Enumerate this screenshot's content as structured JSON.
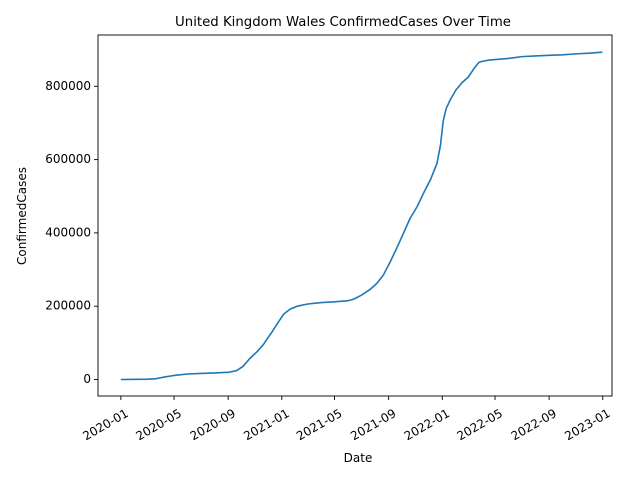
{
  "chart_data": {
    "type": "line",
    "title": "United Kingdom Wales ConfirmedCases Over Time",
    "xlabel": "Date",
    "ylabel": "ConfirmedCases",
    "xlim": [
      "2019-11-10",
      "2023-01-22"
    ],
    "ylim": [
      -45000,
      940000
    ],
    "x_ticks": [
      "2020-01",
      "2020-05",
      "2020-09",
      "2021-01",
      "2021-05",
      "2021-09",
      "2022-01",
      "2022-05",
      "2022-09",
      "2023-01"
    ],
    "y_ticks": [
      0,
      200000,
      400000,
      600000,
      800000
    ],
    "y_tick_labels": [
      "0",
      "200000",
      "400000",
      "600000",
      "800000"
    ],
    "grid": false,
    "legend": "none",
    "series": [
      {
        "color": "#1f77b4",
        "x": [
          "2020-01-01",
          "2020-03-01",
          "2020-03-20",
          "2020-04-10",
          "2020-05-01",
          "2020-06-01",
          "2020-07-01",
          "2020-08-01",
          "2020-09-01",
          "2020-09-20",
          "2020-10-05",
          "2020-10-20",
          "2020-11-05",
          "2020-11-20",
          "2020-12-01",
          "2020-12-10",
          "2020-12-25",
          "2021-01-05",
          "2021-01-20",
          "2021-02-05",
          "2021-03-01",
          "2021-04-01",
          "2021-05-01",
          "2021-06-01",
          "2021-06-15",
          "2021-07-01",
          "2021-07-20",
          "2021-08-05",
          "2021-08-20",
          "2021-09-05",
          "2021-09-20",
          "2021-10-05",
          "2021-10-20",
          "2021-11-05",
          "2021-11-20",
          "2021-12-05",
          "2021-12-20",
          "2021-12-28",
          "2022-01-03",
          "2022-01-10",
          "2022-01-20",
          "2022-02-01",
          "2022-02-15",
          "2022-03-01",
          "2022-03-15",
          "2022-03-25",
          "2022-04-01",
          "2022-04-20",
          "2022-05-01",
          "2022-06-01",
          "2022-07-01",
          "2022-08-01",
          "2022-09-01",
          "2022-10-01",
          "2022-11-01",
          "2022-12-01",
          "2022-12-31"
        ],
        "y": [
          0,
          1000,
          2000,
          7000,
          11000,
          15000,
          16500,
          18000,
          19500,
          24000,
          36000,
          57000,
          75000,
          95000,
          115000,
          130000,
          158000,
          178000,
          192000,
          200000,
          206000,
          210000,
          212000,
          215000,
          220000,
          230000,
          245000,
          262000,
          285000,
          322000,
          360000,
          400000,
          440000,
          472000,
          510000,
          545000,
          590000,
          640000,
          705000,
          740000,
          765000,
          790000,
          810000,
          825000,
          850000,
          865000,
          868000,
          872000,
          873000,
          876000,
          881000,
          883000,
          884500,
          886000,
          888500,
          890500,
          893000
        ]
      }
    ]
  }
}
